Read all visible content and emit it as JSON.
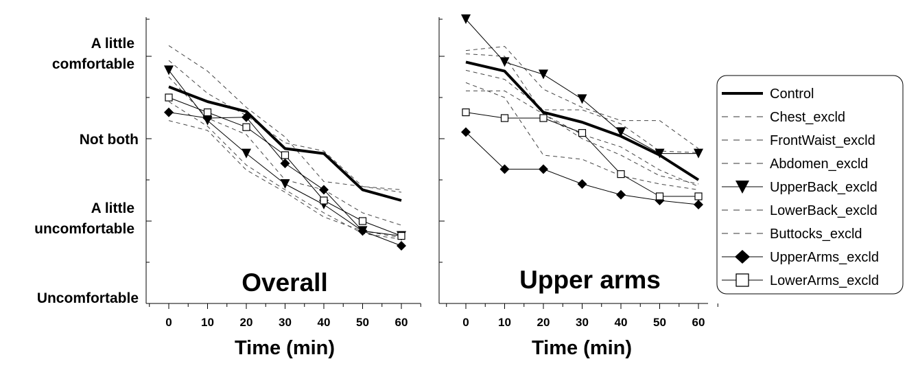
{
  "chart_data": [
    {
      "type": "line",
      "title": "Overall",
      "xlabel": "Time (min)",
      "ylabel": "",
      "x": [
        0,
        10,
        20,
        30,
        40,
        50,
        60
      ],
      "xlim": [
        -6,
        66
      ],
      "ylim": [
        -0.1,
        3.5
      ],
      "y_tick_labels": [
        {
          "value": 0,
          "label": "Uncomfortable"
        },
        {
          "value": 1,
          "label": "A little\nuncomfortable"
        },
        {
          "value": 2,
          "label": "Not both"
        },
        {
          "value": 3,
          "label": "A little\ncomfortable"
        }
      ],
      "series": [
        {
          "name": "Control",
          "style": "thick",
          "values": [
            2.63,
            2.45,
            2.33,
            1.88,
            1.82,
            1.38,
            1.25
          ]
        },
        {
          "name": "Chest_excld",
          "style": "dashed",
          "values": [
            3.13,
            2.82,
            2.38,
            2.02,
            1.48,
            1.42,
            1.38
          ]
        },
        {
          "name": "FrontWaist_excld",
          "style": "dashed",
          "values": [
            2.95,
            2.55,
            2.28,
            1.95,
            1.85,
            1.42,
            1.35
          ]
        },
        {
          "name": "Abdomen_excld",
          "style": "dashed",
          "values": [
            2.75,
            2.25,
            2.05,
            1.5,
            1.38,
            1.1,
            0.95
          ]
        },
        {
          "name": "UpperBack_excld",
          "style": "triangle",
          "values": [
            2.83,
            2.22,
            1.82,
            1.45,
            1.2,
            0.88,
            0.82
          ]
        },
        {
          "name": "LowerBack_excld",
          "style": "dashed",
          "values": [
            2.45,
            2.15,
            1.68,
            1.38,
            1.1,
            0.85,
            0.78
          ]
        },
        {
          "name": "Buttocks_excld",
          "style": "dashed",
          "values": [
            2.22,
            2.1,
            1.62,
            1.35,
            1.05,
            0.88,
            0.8
          ]
        },
        {
          "name": "UpperArms_excld",
          "style": "diamond",
          "values": [
            2.32,
            2.25,
            2.26,
            1.7,
            1.38,
            0.88,
            0.7
          ]
        },
        {
          "name": "LowerArms_excld",
          "style": "square",
          "values": [
            2.5,
            2.32,
            2.14,
            1.8,
            1.25,
            1.0,
            0.82
          ]
        }
      ]
    },
    {
      "type": "line",
      "title": "Upper arms",
      "xlabel": "Time (min)",
      "ylabel": "",
      "x": [
        0,
        10,
        20,
        30,
        40,
        50,
        60
      ],
      "xlim": [
        -6,
        66
      ],
      "ylim": [
        -0.1,
        3.5
      ],
      "series": [
        {
          "name": "Control",
          "style": "thick",
          "values": [
            2.93,
            2.82,
            2.32,
            2.2,
            2.03,
            1.8,
            1.5
          ]
        },
        {
          "name": "Chest_excld",
          "style": "dashed",
          "values": [
            3.07,
            3.12,
            2.6,
            2.38,
            2.22,
            2.22,
            1.88
          ]
        },
        {
          "name": "FrontWaist_excld",
          "style": "dashed",
          "values": [
            2.83,
            2.72,
            2.35,
            2.35,
            2.18,
            1.85,
            1.83
          ]
        },
        {
          "name": "Abdomen_excld",
          "style": "dashed",
          "values": [
            2.58,
            2.58,
            2.3,
            2.05,
            1.9,
            1.62,
            1.42
          ]
        },
        {
          "name": "UpperBack_excld",
          "style": "triangle",
          "values": [
            3.45,
            2.93,
            2.78,
            2.48,
            2.08,
            1.82,
            1.82
          ]
        },
        {
          "name": "LowerBack_excld",
          "style": "dashed",
          "values": [
            2.68,
            2.5,
            1.8,
            1.75,
            1.55,
            1.45,
            1.38
          ]
        },
        {
          "name": "Buttocks_excld",
          "style": "dashed",
          "values": [
            3.03,
            3.0,
            2.3,
            2.0,
            1.8,
            1.55,
            1.45
          ]
        },
        {
          "name": "UpperArms_excld",
          "style": "diamond",
          "values": [
            2.08,
            1.63,
            1.63,
            1.45,
            1.32,
            1.25,
            1.2
          ]
        },
        {
          "name": "LowerArms_excld",
          "style": "square",
          "values": [
            2.32,
            2.25,
            2.25,
            2.07,
            1.57,
            1.3,
            1.3
          ]
        }
      ]
    }
  ],
  "legend": {
    "placement": "right",
    "items": [
      {
        "label": "Control",
        "style": "thick"
      },
      {
        "label": "Chest_excld",
        "style": "dashed"
      },
      {
        "label": "FrontWaist_excld",
        "style": "dashed"
      },
      {
        "label": "Abdomen_excld",
        "style": "dashed"
      },
      {
        "label": "UpperBack_excld",
        "style": "triangle"
      },
      {
        "label": "LowerBack_excld",
        "style": "dashed"
      },
      {
        "label": "Buttocks_excld",
        "style": "dashed"
      },
      {
        "label": "UpperArms_excld",
        "style": "diamond"
      },
      {
        "label": "LowerArms_excld",
        "style": "square"
      }
    ]
  }
}
